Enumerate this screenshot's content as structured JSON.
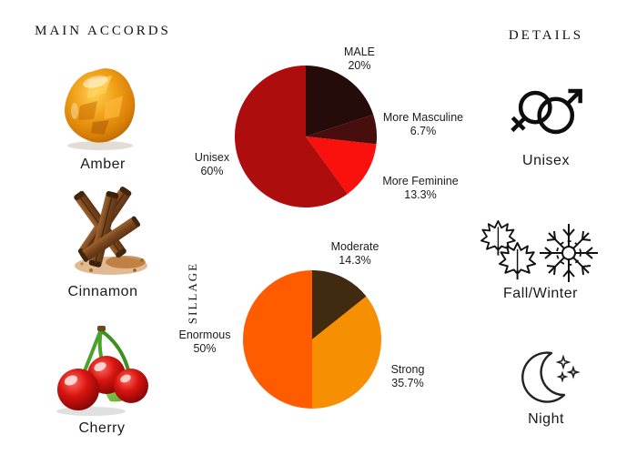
{
  "accent_colors": {
    "gender_pie": [
      "#250c0a",
      "#480d0d",
      "#fa100c",
      "#ae0d0d"
    ],
    "sillage_pie": [
      "#402a10",
      "#f69002",
      "#ff5c00"
    ],
    "text": "#1c1c1c"
  },
  "left_column": {
    "title": "MAIN ACCORDS",
    "accords": [
      {
        "name": "Amber",
        "icon": "amber-resin-image"
      },
      {
        "name": "Cinnamon",
        "icon": "cinnamon-sticks-image"
      },
      {
        "name": "Cherry",
        "icon": "cherries-image"
      }
    ]
  },
  "right_column": {
    "title": "DETAILS",
    "details": [
      {
        "label": "Unisex",
        "icon": "unisex-gender-symbols-icon"
      },
      {
        "label": "Fall/Winter",
        "icon": "maple-leaves-snowflake-icon"
      },
      {
        "label": "Night",
        "icon": "crescent-moon-stars-icon"
      }
    ]
  },
  "chart_data": [
    {
      "type": "pie",
      "name": "gender-audience",
      "title": "",
      "start_angle_deg": 0,
      "direction": "clockwise",
      "legend_position": "outside-labels",
      "slices": [
        {
          "label": "MALE",
          "pct": "20%",
          "value": 20,
          "color": "#250c0a"
        },
        {
          "label": "More Masculine",
          "pct": "6.7%",
          "value": 6.7,
          "color": "#480d0d"
        },
        {
          "label": "More Feminine",
          "pct": "13.3%",
          "value": 13.3,
          "color": "#fa100c"
        },
        {
          "label": "Unisex",
          "pct": "60%",
          "value": 60,
          "color": "#ae0d0d"
        }
      ]
    },
    {
      "type": "pie",
      "name": "sillage",
      "ylabel": "SILLAGE",
      "start_angle_deg": 0,
      "direction": "clockwise",
      "legend_position": "outside-labels",
      "slices": [
        {
          "label": "Moderate",
          "pct": "14.3%",
          "value": 14.3,
          "color": "#402a10"
        },
        {
          "label": "Strong",
          "pct": "35.7%",
          "value": 35.7,
          "color": "#f69002"
        },
        {
          "label": "Enormous",
          "pct": "50%",
          "value": 50,
          "color": "#ff5c00"
        }
      ]
    }
  ]
}
